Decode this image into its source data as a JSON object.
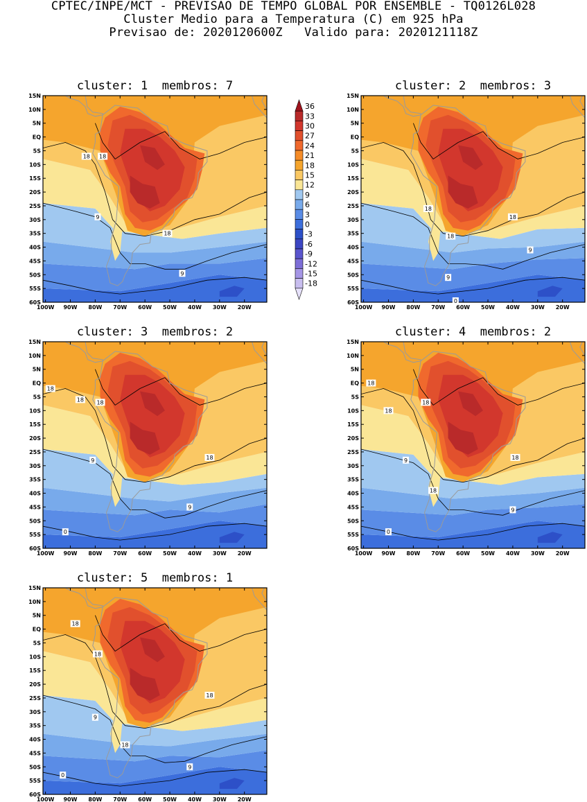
{
  "header": {
    "line1": "CPTEC/INPE/MCT - PREVISAO DE TEMPO GLOBAL POR ENSEMBLE - TQ0126L028",
    "line2": "Cluster Medio para a Temperatura (C) em 925 hPa",
    "line3": "Previsao de: 2020120600Z   Valido para: 2020121118Z"
  },
  "panels": [
    {
      "title": "cluster: 1  membros: 7",
      "cluster": 1,
      "membros": 7,
      "contour_labels": [
        {
          "text": "18",
          "lon": -83.5,
          "lat": -7
        },
        {
          "text": "18",
          "lon": -77,
          "lat": -7
        },
        {
          "text": "9",
          "lon": -79,
          "lat": -29
        },
        {
          "text": "18",
          "lon": -51,
          "lat": -35
        },
        {
          "text": "9",
          "lon": -45,
          "lat": -49.5
        }
      ]
    },
    {
      "title": "cluster: 2  membros: 3",
      "cluster": 2,
      "membros": 3,
      "contour_labels": [
        {
          "text": "18",
          "lon": -74,
          "lat": -26
        },
        {
          "text": "18",
          "lon": -65,
          "lat": -36
        },
        {
          "text": "18",
          "lon": -40,
          "lat": -29
        },
        {
          "text": "9",
          "lon": -33,
          "lat": -41
        },
        {
          "text": "9",
          "lon": -66,
          "lat": -51
        },
        {
          "text": "0",
          "lon": -63,
          "lat": -59.5
        }
      ]
    },
    {
      "title": "cluster: 3  membros: 2",
      "cluster": 3,
      "membros": 2,
      "contour_labels": [
        {
          "text": "18",
          "lon": -98,
          "lat": -2
        },
        {
          "text": "18",
          "lon": -86,
          "lat": -6
        },
        {
          "text": "18",
          "lon": -78,
          "lat": -7
        },
        {
          "text": "9",
          "lon": -81,
          "lat": -28
        },
        {
          "text": "18",
          "lon": -34,
          "lat": -27
        },
        {
          "text": "9",
          "lon": -42,
          "lat": -45
        },
        {
          "text": "0",
          "lon": -92,
          "lat": -54
        }
      ]
    },
    {
      "title": "cluster: 4  membros: 2",
      "cluster": 4,
      "membros": 2,
      "contour_labels": [
        {
          "text": "18",
          "lon": -97,
          "lat": 0
        },
        {
          "text": "18",
          "lon": -90,
          "lat": -10
        },
        {
          "text": "18",
          "lon": -75,
          "lat": -7
        },
        {
          "text": "9",
          "lon": -83,
          "lat": -28
        },
        {
          "text": "18",
          "lon": -72,
          "lat": -39
        },
        {
          "text": "18",
          "lon": -39,
          "lat": -27
        },
        {
          "text": "9",
          "lon": -40,
          "lat": -46
        },
        {
          "text": "0",
          "lon": -90,
          "lat": -54
        }
      ]
    },
    {
      "title": "cluster: 5  membros: 1",
      "cluster": 5,
      "membros": 1,
      "contour_labels": [
        {
          "text": "18",
          "lon": -88,
          "lat": 2
        },
        {
          "text": "18",
          "lon": -79,
          "lat": -9
        },
        {
          "text": "18",
          "lon": -34,
          "lat": -24
        },
        {
          "text": "9",
          "lon": -80,
          "lat": -32
        },
        {
          "text": "18",
          "lon": -68,
          "lat": -42
        },
        {
          "text": "9",
          "lon": -42,
          "lat": -50
        },
        {
          "text": "0",
          "lon": -93,
          "lat": -53
        }
      ]
    }
  ],
  "map": {
    "lon_ticks": [
      {
        "v": -100,
        "label": "100W"
      },
      {
        "v": -90,
        "label": "90W"
      },
      {
        "v": -80,
        "label": "80W"
      },
      {
        "v": -70,
        "label": "70W"
      },
      {
        "v": -60,
        "label": "60W"
      },
      {
        "v": -50,
        "label": "50W"
      },
      {
        "v": -40,
        "label": "40W"
      },
      {
        "v": -30,
        "label": "30W"
      },
      {
        "v": -20,
        "label": "20W"
      }
    ],
    "lat_ticks": [
      {
        "v": 15,
        "label": "15N"
      },
      {
        "v": 10,
        "label": "10N"
      },
      {
        "v": 5,
        "label": "5N"
      },
      {
        "v": 0,
        "label": "EQ"
      },
      {
        "v": -5,
        "label": "5S"
      },
      {
        "v": -10,
        "label": "10S"
      },
      {
        "v": -15,
        "label": "15S"
      },
      {
        "v": -20,
        "label": "20S"
      },
      {
        "v": -25,
        "label": "25S"
      },
      {
        "v": -30,
        "label": "30S"
      },
      {
        "v": -35,
        "label": "35S"
      },
      {
        "v": -40,
        "label": "40S"
      },
      {
        "v": -45,
        "label": "45S"
      },
      {
        "v": -50,
        "label": "50S"
      },
      {
        "v": -55,
        "label": "55S"
      },
      {
        "v": -60,
        "label": "60S"
      }
    ],
    "lon_range": [
      -101,
      -11
    ],
    "lat_range": [
      -60,
      15
    ]
  },
  "colorbar": {
    "labels": [
      "36",
      "33",
      "30",
      "27",
      "24",
      "21",
      "18",
      "15",
      "12",
      "9",
      "6",
      "3",
      "0",
      "-3",
      "-6",
      "-9",
      "-12",
      "-15",
      "-18"
    ],
    "colors": [
      "#a0141e",
      "#b92a2a",
      "#d2372d",
      "#e1502d",
      "#f0692d",
      "#f58c28",
      "#f5a52d",
      "#fac864",
      "#fae696",
      "#a0c8f0",
      "#78aaeb",
      "#5a8ce6",
      "#3c6edc",
      "#2d50c8",
      "#3c46c3",
      "#5a55cd",
      "#7d6ed7",
      "#a596e6",
      "#c8beef",
      "#e6e1fa"
    ]
  }
}
